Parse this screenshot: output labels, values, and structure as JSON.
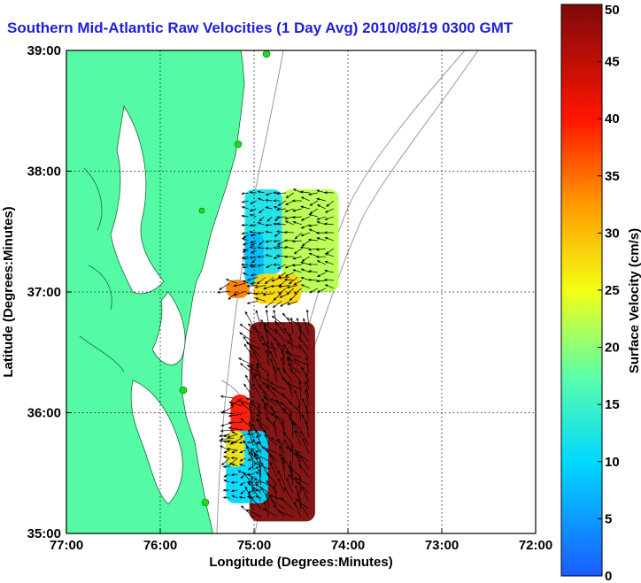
{
  "chart_data": {
    "type": "heatmap",
    "title": "Southern Mid-Atlantic Raw Velocities (1 Day Avg) 2010/08/19 0300 GMT",
    "xlabel": "Longitude (Degrees:Minutes)",
    "ylabel": "Latitude (Degrees:Minutes)",
    "xlim": [
      -77,
      -72
    ],
    "ylim": [
      35,
      39
    ],
    "x_ticks": [
      {
        "value": -77,
        "label": "77:00"
      },
      {
        "value": -76,
        "label": "76:00"
      },
      {
        "value": -75,
        "label": "75:00"
      },
      {
        "value": -74,
        "label": "74:00"
      },
      {
        "value": -73,
        "label": "73:00"
      },
      {
        "value": -72,
        "label": "72:00"
      }
    ],
    "y_ticks": [
      {
        "value": 35,
        "label": "35:00"
      },
      {
        "value": 36,
        "label": "36:00"
      },
      {
        "value": 37,
        "label": "37:00"
      },
      {
        "value": 38,
        "label": "38:00"
      },
      {
        "value": 39,
        "label": "39:00"
      }
    ],
    "grid": true,
    "colorbar": {
      "label": "Surface Velocity (cm/s)",
      "range": [
        0,
        50
      ],
      "ticks": [
        0,
        5,
        10,
        15,
        20,
        25,
        30,
        35,
        40,
        45,
        50
      ],
      "position": "right"
    },
    "regions": [
      {
        "name": "",
        "lon": [
          -75.1,
          -74.7
        ],
        "lat": [
          37.15,
          37.85
        ],
        "speed": 12
      },
      {
        "name": "",
        "lon": [
          -75.1,
          -74.9
        ],
        "lat": [
          37.05,
          37.5
        ],
        "speed": 8
      },
      {
        "name": "",
        "lon": [
          -74.7,
          -74.1
        ],
        "lat": [
          37.0,
          37.85
        ],
        "speed": 22
      },
      {
        "name": "",
        "lon": [
          -75.0,
          -74.5
        ],
        "lat": [
          36.9,
          37.15
        ],
        "speed": 28
      },
      {
        "name": "",
        "lon": [
          -75.3,
          -75.05
        ],
        "lat": [
          36.95,
          37.1
        ],
        "speed": 34
      },
      {
        "name": "",
        "lon": [
          -75.05,
          -74.35
        ],
        "lat": [
          35.1,
          36.75
        ],
        "speed": 50
      },
      {
        "name": "",
        "lon": [
          -75.25,
          -75.05
        ],
        "lat": [
          35.75,
          36.15
        ],
        "speed": 40
      },
      {
        "name": "",
        "lon": [
          -75.3,
          -74.85
        ],
        "lat": [
          35.25,
          35.85
        ],
        "speed": 10
      },
      {
        "name": "",
        "lon": [
          -75.3,
          -75.1
        ],
        "lat": [
          35.55,
          35.85
        ],
        "speed": 27
      }
    ],
    "colors": {
      "land": "#54fba4",
      "water": "#ffffff",
      "title": "#1f1fd6",
      "isobath": "#9a9a9a",
      "station": "#22d622"
    }
  }
}
